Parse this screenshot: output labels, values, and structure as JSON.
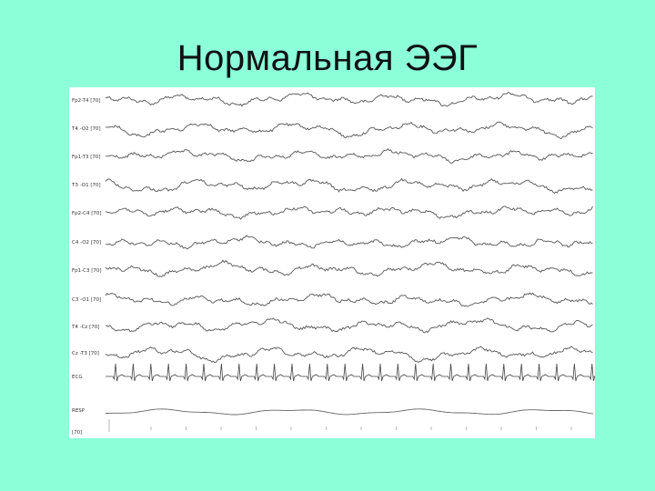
{
  "slide": {
    "title": "Нормальная ЭЭГ"
  },
  "eeg": {
    "channels": [
      "Fp2-T4 [70]",
      "T4 -O2 [70]",
      "Fp1-T3 [70]",
      "T3 -O1 [70]",
      "Fp2-C4 [70]",
      "C4 -O2 [70]",
      "Fp1-C3 [70]",
      "C3 -O1 [70]",
      "T4 -Cz [70]",
      "Cz -T3 [70]"
    ],
    "ecg_label": "ECG",
    "resp_label": "RESP",
    "scale_label": "[70]"
  },
  "colors": {
    "background": "#8cffd9",
    "panel": "#ffffff",
    "trace": "#555555"
  }
}
